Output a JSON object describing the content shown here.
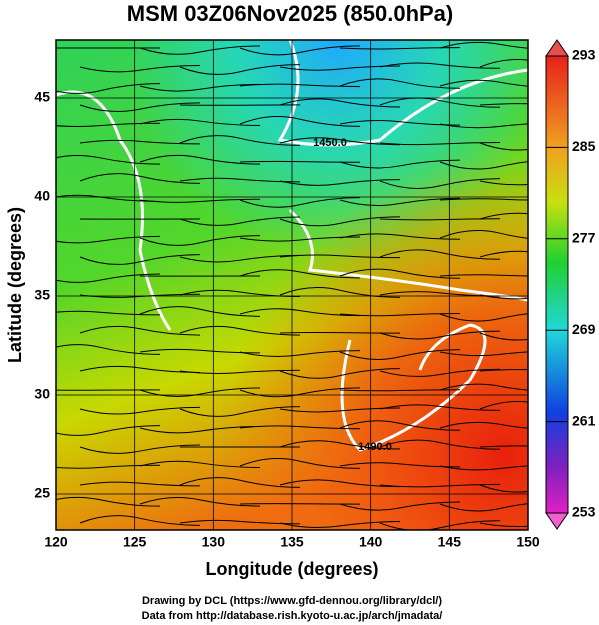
{
  "title": "MSM 03Z06Nov2025 (850.0hPa)",
  "x_axis": {
    "label": "Longitude (degrees)",
    "ticks": [
      120,
      125,
      130,
      135,
      140,
      145,
      150
    ]
  },
  "y_axis": {
    "label": "Latitude  (degrees)",
    "ticks": [
      25,
      30,
      35,
      40,
      45
    ]
  },
  "colorbar": {
    "ticks": [
      253,
      261,
      269,
      277,
      285,
      293
    ]
  },
  "contour_labels": [
    "1450.0",
    "1490.0"
  ],
  "credits": [
    "Drawing by DCL (https://www.gfd-dennou.org/library/dcl/)",
    "Data from http://database.rish.kyoto-u.ac.jp/arch/jmadata/"
  ]
}
